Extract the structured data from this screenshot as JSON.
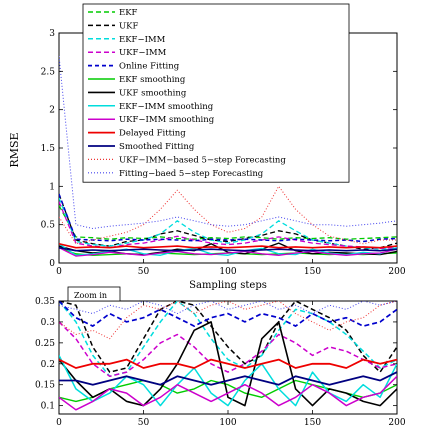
{
  "chart_data": [
    {
      "type": "line",
      "xlabel": "Sampling steps",
      "ylabel": "RMSE",
      "xlim": [
        0,
        200
      ],
      "ylim": [
        0,
        3
      ],
      "x_ticks": [
        0,
        50,
        100,
        150,
        200
      ],
      "y_ticks": [
        0,
        0.5,
        1,
        1.5,
        2,
        2.5,
        3
      ],
      "grid": false,
      "legend_placement": "top-right",
      "x": [
        0,
        10,
        20,
        30,
        40,
        50,
        60,
        70,
        80,
        90,
        100,
        110,
        120,
        130,
        140,
        150,
        160,
        170,
        180,
        190,
        200
      ],
      "series": [
        {
          "name": "EKF",
          "color": "#00cc00",
          "dash": "5,3",
          "width": 1.3,
          "values": [
            0.75,
            0.34,
            0.33,
            0.31,
            0.33,
            0.32,
            0.34,
            0.32,
            0.31,
            0.33,
            0.32,
            0.34,
            0.33,
            0.31,
            0.33,
            0.32,
            0.33,
            0.31,
            0.32,
            0.33,
            0.34
          ]
        },
        {
          "name": "UKF",
          "color": "#000000",
          "dash": "5,3",
          "width": 1.3,
          "values": [
            0.9,
            0.3,
            0.25,
            0.22,
            0.28,
            0.3,
            0.38,
            0.42,
            0.36,
            0.3,
            0.28,
            0.32,
            0.36,
            0.42,
            0.38,
            0.3,
            0.26,
            0.22,
            0.18,
            0.2,
            0.26
          ]
        },
        {
          "name": "EKF−IMM",
          "color": "#00dddd",
          "dash": "5,3",
          "width": 1.3,
          "values": [
            0.85,
            0.28,
            0.24,
            0.22,
            0.26,
            0.3,
            0.38,
            0.55,
            0.4,
            0.3,
            0.26,
            0.3,
            0.38,
            0.55,
            0.42,
            0.3,
            0.26,
            0.22,
            0.2,
            0.18,
            0.2
          ]
        },
        {
          "name": "UKF−IMM",
          "color": "#cc00cc",
          "dash": "5,3",
          "width": 1.3,
          "values": [
            0.8,
            0.26,
            0.22,
            0.2,
            0.24,
            0.26,
            0.3,
            0.35,
            0.3,
            0.26,
            0.24,
            0.26,
            0.3,
            0.34,
            0.3,
            0.26,
            0.24,
            0.22,
            0.21,
            0.19,
            0.2
          ]
        },
        {
          "name": "Online Fitting",
          "color": "#0000cc",
          "dash": "4,3",
          "width": 1.5,
          "values": [
            0.9,
            0.31,
            0.3,
            0.29,
            0.31,
            0.3,
            0.31,
            0.3,
            0.29,
            0.31,
            0.3,
            0.31,
            0.3,
            0.29,
            0.31,
            0.3,
            0.29,
            0.3,
            0.28,
            0.31,
            0.32
          ]
        },
        {
          "name": "EKF smoothing",
          "color": "#00cc00",
          "dash": "",
          "width": 1.3,
          "values": [
            0.2,
            0.12,
            0.1,
            0.11,
            0.12,
            0.11,
            0.13,
            0.12,
            0.11,
            0.12,
            0.13,
            0.12,
            0.11,
            0.12,
            0.13,
            0.12,
            0.11,
            0.12,
            0.11,
            0.12,
            0.13
          ]
        },
        {
          "name": "UKF smoothing",
          "color": "#000000",
          "dash": "",
          "width": 1.4,
          "values": [
            0.22,
            0.16,
            0.13,
            0.15,
            0.12,
            0.11,
            0.14,
            0.18,
            0.16,
            0.25,
            0.14,
            0.12,
            0.18,
            0.26,
            0.16,
            0.12,
            0.14,
            0.13,
            0.12,
            0.11,
            0.15
          ]
        },
        {
          "name": "EKF−IMM smoothing",
          "color": "#00dddd",
          "dash": "",
          "width": 1.3,
          "values": [
            0.25,
            0.1,
            0.12,
            0.15,
            0.18,
            0.12,
            0.1,
            0.16,
            0.19,
            0.12,
            0.1,
            0.16,
            0.19,
            0.12,
            0.11,
            0.18,
            0.13,
            0.11,
            0.14,
            0.12,
            0.2
          ]
        },
        {
          "name": "UKF−IMM smoothing",
          "color": "#cc00cc",
          "dash": "",
          "width": 1.3,
          "values": [
            0.2,
            0.09,
            0.11,
            0.14,
            0.12,
            0.1,
            0.13,
            0.15,
            0.12,
            0.11,
            0.13,
            0.15,
            0.12,
            0.1,
            0.13,
            0.15,
            0.12,
            0.1,
            0.12,
            0.13,
            0.18
          ]
        },
        {
          "name": "Delayed Fitting",
          "color": "#ee0000",
          "dash": "",
          "width": 1.6,
          "values": [
            0.25,
            0.2,
            0.21,
            0.2,
            0.22,
            0.2,
            0.21,
            0.22,
            0.2,
            0.21,
            0.2,
            0.21,
            0.22,
            0.2,
            0.21,
            0.2,
            0.21,
            0.2,
            0.21,
            0.2,
            0.22
          ]
        },
        {
          "name": "Smoothed Fitting",
          "color": "#000080",
          "dash": "",
          "width": 1.6,
          "values": [
            0.2,
            0.16,
            0.17,
            0.16,
            0.17,
            0.18,
            0.17,
            0.16,
            0.17,
            0.18,
            0.17,
            0.16,
            0.17,
            0.18,
            0.17,
            0.16,
            0.17,
            0.16,
            0.17,
            0.16,
            0.18
          ]
        },
        {
          "name": "UKF−IMM−based 5−step Forecasting",
          "color": "#ee3333",
          "dash": "1,2",
          "width": 1.0,
          "values": [
            0.6,
            0.25,
            0.3,
            0.35,
            0.4,
            0.5,
            0.7,
            0.95,
            0.7,
            0.5,
            0.4,
            0.45,
            0.6,
            1.0,
            0.7,
            0.5,
            0.35,
            0.3,
            0.25,
            0.3,
            0.3
          ]
        },
        {
          "name": "Fitting−baed 5−step Forecasting",
          "color": "#4444ee",
          "dash": "1,2",
          "width": 1.0,
          "values": [
            2.7,
            0.5,
            0.45,
            0.48,
            0.5,
            0.52,
            0.55,
            0.6,
            0.55,
            0.5,
            0.48,
            0.5,
            0.55,
            0.6,
            0.55,
            0.5,
            0.5,
            0.48,
            0.5,
            0.52,
            0.55
          ]
        }
      ]
    },
    {
      "type": "line",
      "title": "Zoom in",
      "xlim": [
        0,
        200
      ],
      "ylim": [
        0.08,
        0.35
      ],
      "x_ticks": [
        0,
        50,
        100,
        150,
        200
      ],
      "y_ticks": [
        0.1,
        0.15,
        0.2,
        0.25,
        0.3,
        0.35
      ],
      "grid": false,
      "x": [
        0,
        10,
        20,
        30,
        40,
        50,
        60,
        70,
        80,
        90,
        100,
        110,
        120,
        130,
        140,
        150,
        160,
        170,
        180,
        190,
        200
      ],
      "series": [
        {
          "color": "#000000",
          "dash": "5,3",
          "width": 1.5,
          "values": [
            0.35,
            0.34,
            0.24,
            0.18,
            0.19,
            0.26,
            0.33,
            0.35,
            0.34,
            0.29,
            0.24,
            0.2,
            0.22,
            0.3,
            0.35,
            0.33,
            0.31,
            0.28,
            0.22,
            0.18,
            0.24
          ]
        },
        {
          "color": "#00dddd",
          "dash": "5,3",
          "width": 1.5,
          "values": [
            0.35,
            0.3,
            0.22,
            0.17,
            0.18,
            0.24,
            0.3,
            0.35,
            0.32,
            0.26,
            0.21,
            0.19,
            0.22,
            0.28,
            0.33,
            0.32,
            0.3,
            0.27,
            0.23,
            0.19,
            0.21
          ]
        },
        {
          "color": "#cc00cc",
          "dash": "5,3",
          "width": 1.5,
          "values": [
            0.3,
            0.26,
            0.2,
            0.17,
            0.18,
            0.21,
            0.25,
            0.27,
            0.24,
            0.2,
            0.18,
            0.2,
            0.23,
            0.27,
            0.25,
            0.22,
            0.24,
            0.23,
            0.21,
            0.19,
            0.2
          ]
        },
        {
          "color": "#0000cc",
          "dash": "5,3",
          "width": 1.7,
          "values": [
            0.35,
            0.31,
            0.29,
            0.32,
            0.3,
            0.31,
            0.33,
            0.31,
            0.29,
            0.31,
            0.32,
            0.3,
            0.32,
            0.31,
            0.29,
            0.32,
            0.3,
            0.31,
            0.29,
            0.3,
            0.33
          ]
        },
        {
          "color": "#ee3333",
          "dash": "1,2",
          "width": 1.0,
          "values": [
            0.3,
            0.27,
            0.28,
            0.26,
            0.31,
            0.34,
            0.33,
            0.35,
            0.32,
            0.34,
            0.35,
            0.33,
            0.34,
            0.35,
            0.32,
            0.3,
            0.28,
            0.3,
            0.31,
            0.34,
            0.35
          ]
        },
        {
          "color": "#4444ee",
          "dash": "1,2",
          "width": 1.0,
          "values": [
            0.34,
            0.33,
            0.32,
            0.34,
            0.33,
            0.35,
            0.34,
            0.32,
            0.34,
            0.35,
            0.33,
            0.34,
            0.35,
            0.33,
            0.34,
            0.32,
            0.34,
            0.33,
            0.35,
            0.34,
            0.35
          ]
        },
        {
          "color": "#00cc00",
          "dash": "",
          "width": 1.4,
          "values": [
            0.12,
            0.11,
            0.12,
            0.14,
            0.15,
            0.16,
            0.15,
            0.13,
            0.14,
            0.16,
            0.15,
            0.13,
            0.12,
            0.14,
            0.16,
            0.15,
            0.14,
            0.13,
            0.12,
            0.13,
            0.15
          ]
        },
        {
          "color": "#000000",
          "dash": "",
          "width": 1.6,
          "values": [
            0.21,
            0.16,
            0.12,
            0.14,
            0.11,
            0.1,
            0.14,
            0.2,
            0.28,
            0.3,
            0.12,
            0.1,
            0.26,
            0.3,
            0.14,
            0.1,
            0.14,
            0.13,
            0.11,
            0.1,
            0.14
          ]
        },
        {
          "color": "#00dddd",
          "dash": "",
          "width": 1.5,
          "values": [
            0.22,
            0.14,
            0.11,
            0.13,
            0.17,
            0.15,
            0.1,
            0.15,
            0.19,
            0.13,
            0.1,
            0.16,
            0.2,
            0.14,
            0.1,
            0.18,
            0.13,
            0.11,
            0.15,
            0.12,
            0.2
          ]
        },
        {
          "color": "#cc00cc",
          "dash": "",
          "width": 1.5,
          "values": [
            0.12,
            0.09,
            0.11,
            0.14,
            0.13,
            0.1,
            0.12,
            0.15,
            0.13,
            0.11,
            0.13,
            0.15,
            0.13,
            0.1,
            0.12,
            0.15,
            0.13,
            0.1,
            0.12,
            0.13,
            0.17
          ]
        },
        {
          "color": "#ee0000",
          "dash": "",
          "width": 1.8,
          "values": [
            0.21,
            0.19,
            0.2,
            0.2,
            0.21,
            0.19,
            0.2,
            0.2,
            0.19,
            0.21,
            0.2,
            0.19,
            0.2,
            0.21,
            0.19,
            0.2,
            0.2,
            0.19,
            0.21,
            0.2,
            0.21
          ]
        },
        {
          "color": "#000080",
          "dash": "",
          "width": 1.8,
          "values": [
            0.16,
            0.16,
            0.15,
            0.16,
            0.17,
            0.16,
            0.15,
            0.17,
            0.16,
            0.15,
            0.16,
            0.17,
            0.16,
            0.15,
            0.17,
            0.16,
            0.15,
            0.16,
            0.17,
            0.16,
            0.18
          ]
        }
      ]
    }
  ]
}
